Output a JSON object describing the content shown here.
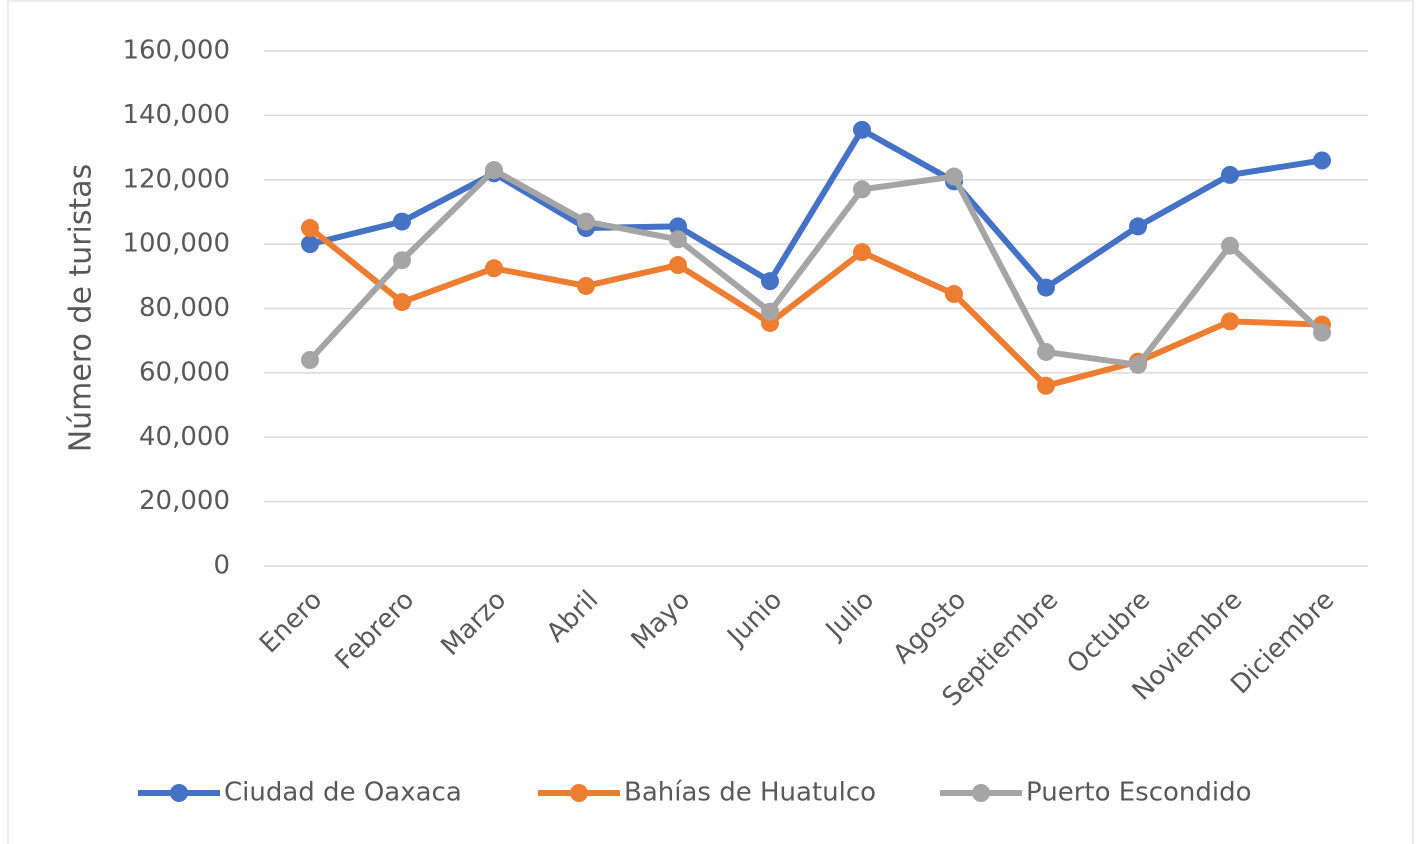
{
  "chart_data": {
    "type": "line",
    "y_label": "Número de turistas",
    "categories": [
      "Enero",
      "Febrero",
      "Marzo",
      "Abril",
      "Mayo",
      "Junio",
      "Julio",
      "Agosto",
      "Septiembre",
      "Octubre",
      "Noviembre",
      "Diciembre"
    ],
    "series": [
      {
        "name": "Ciudad de Oaxaca",
        "color": "#4472c4",
        "values": [
          100000,
          107000,
          122000,
          105000,
          105500,
          88500,
          135500,
          119500,
          86500,
          105500,
          121500,
          126000
        ]
      },
      {
        "name": "Bahías de Huatulco",
        "color": "#ed7d31",
        "values": [
          105000,
          82000,
          92500,
          87000,
          93500,
          75500,
          97500,
          84500,
          56000,
          63500,
          76000,
          75000
        ]
      },
      {
        "name": "Puerto Escondido",
        "color": "#a5a5a5",
        "values": [
          64000,
          95000,
          123000,
          107000,
          101500,
          79000,
          117000,
          121000,
          66500,
          62500,
          99500,
          72500
        ]
      }
    ],
    "ylim": [
      0,
      160000
    ],
    "yticks": [
      0,
      {
        "value": 20000,
        "label": "20,000"
      },
      {
        "value": 40000,
        "label": "40,000"
      },
      {
        "value": 60000,
        "label": "60,000"
      },
      {
        "value": 80000,
        "label": "80,000"
      },
      {
        "value": 100000,
        "label": "100,000"
      },
      {
        "value": 120000,
        "label": "120,000"
      },
      {
        "value": 140000,
        "label": "140,000"
      },
      {
        "value": 160000,
        "label": "160,000"
      }
    ],
    "grid": true,
    "legend": "bottom"
  }
}
